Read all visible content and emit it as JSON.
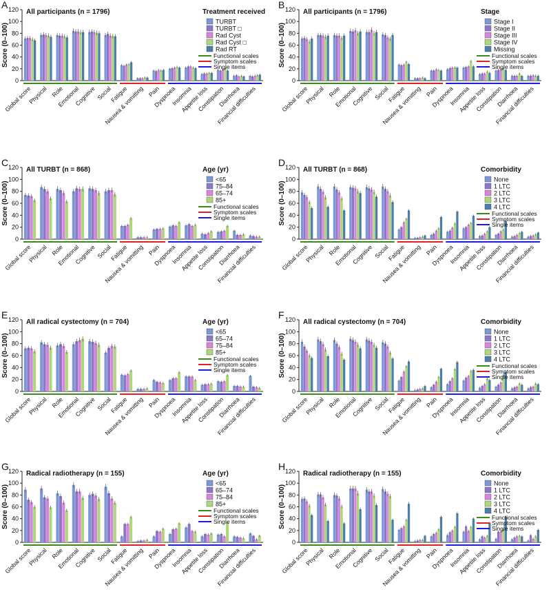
{
  "figure": {
    "y_label": "Score (0–100)",
    "y_ticks": [
      0,
      20,
      40,
      60,
      80,
      100,
      120
    ],
    "categories": [
      "Global score",
      "Physical",
      "Role",
      "Emotional",
      "Cognitive",
      "Social",
      "Fatigue",
      "Nausea & vomitting",
      "Pain",
      "Dyspnoea",
      "Insomnia",
      "Appetite loss",
      "Constipation",
      "Diarrhoea",
      "Financial difficulties"
    ],
    "scale_groups": [
      {
        "name": "Functional scales",
        "color": "#3a8a1a",
        "from": 0,
        "to": 5
      },
      {
        "name": "Symptom scales",
        "color": "#e02020",
        "from": 6,
        "to": 8
      },
      {
        "name": "Single items",
        "color": "#1a1ae0",
        "from": 9,
        "to": 14
      }
    ],
    "palette": [
      "#7b97d6",
      "#8c78c6",
      "#d687dc",
      "#aed77b",
      "#4a7fa8"
    ]
  },
  "chart_data": [
    {
      "type": "bar",
      "panel": "A",
      "title": "All participants (n = 1796)",
      "legend_title": "Treatment received",
      "ylim": [
        0,
        120
      ],
      "series": [
        {
          "name": "TURBT",
          "values": [
            71,
            77,
            77,
            84,
            82,
            77,
            26,
            4,
            17,
            20,
            22,
            11,
            18,
            8,
            8
          ]
        },
        {
          "name": "TURBT □",
          "values": [
            72,
            78,
            76,
            83,
            83,
            79,
            25,
            4,
            16,
            21,
            24,
            12,
            17,
            9,
            7
          ]
        },
        {
          "name": "Rad Cyst",
          "values": [
            72,
            77,
            76,
            83,
            82,
            76,
            27,
            4,
            18,
            22,
            24,
            12,
            19,
            7,
            8
          ]
        },
        {
          "name": "Rad Cyst □",
          "values": [
            70,
            76,
            75,
            82,
            81,
            75,
            28,
            5,
            17,
            23,
            22,
            13,
            20,
            8,
            9
          ]
        },
        {
          "name": "Rad RT",
          "values": [
            68,
            74,
            73,
            82,
            80,
            75,
            31,
            5,
            18,
            22,
            21,
            13,
            17,
            7,
            10
          ]
        }
      ]
    },
    {
      "type": "bar",
      "panel": "B",
      "title": "All participants (n = 1796)",
      "legend_title": "Stage",
      "ylim": [
        0,
        120
      ],
      "series": [
        {
          "name": "Stage I",
          "values": [
            71,
            77,
            77,
            84,
            82,
            78,
            27,
            4,
            17,
            19,
            22,
            11,
            17,
            8,
            8
          ]
        },
        {
          "name": "Stage II",
          "values": [
            72,
            77,
            76,
            83,
            82,
            77,
            26,
            4,
            17,
            21,
            23,
            12,
            18,
            8,
            8
          ]
        },
        {
          "name": "Stage III",
          "values": [
            70,
            76,
            76,
            85,
            86,
            73,
            27,
            4,
            19,
            22,
            24,
            12,
            19,
            8,
            9
          ]
        },
        {
          "name": "Stage IV",
          "values": [
            66,
            74,
            72,
            80,
            80,
            71,
            32,
            5,
            18,
            22,
            33,
            15,
            20,
            12,
            8
          ]
        },
        {
          "name": "Missing",
          "values": [
            71,
            76,
            76,
            83,
            82,
            77,
            28,
            4,
            17,
            22,
            24,
            13,
            18,
            8,
            8
          ]
        }
      ]
    },
    {
      "type": "bar",
      "panel": "C",
      "title": "All TURBT (n = 868)",
      "legend_title": "Age (yr)",
      "ylim": [
        0,
        120
      ],
      "series": [
        {
          "name": "<65",
          "values": [
            74,
            87,
            84,
            80,
            85,
            80,
            22,
            3,
            16,
            21,
            23,
            9,
            12,
            14,
            6
          ]
        },
        {
          "name": "75–84",
          "values": [
            73,
            84,
            82,
            85,
            84,
            82,
            22,
            3,
            17,
            23,
            25,
            8,
            13,
            7,
            5
          ]
        },
        {
          "name": "65–74",
          "values": [
            72,
            80,
            77,
            84,
            82,
            82,
            24,
            3,
            17,
            22,
            22,
            10,
            14,
            7,
            4
          ]
        },
        {
          "name": "85+",
          "values": [
            65,
            68,
            63,
            84,
            77,
            75,
            35,
            3,
            18,
            28,
            24,
            13,
            22,
            8,
            4
          ]
        }
      ]
    },
    {
      "type": "bar",
      "panel": "D",
      "title": "All TURBT (n = 868)",
      "legend_title": "Comorbidity",
      "ylim": [
        0,
        120
      ],
      "series": [
        {
          "name": "None",
          "values": [
            78,
            88,
            88,
            87,
            87,
            88,
            16,
            2,
            7,
            12,
            18,
            5,
            7,
            4,
            4
          ]
        },
        {
          "name": "1 LTC",
          "values": [
            74,
            84,
            83,
            86,
            85,
            84,
            20,
            2,
            9,
            14,
            20,
            6,
            9,
            5,
            5
          ]
        },
        {
          "name": "2 LTC",
          "values": [
            70,
            79,
            78,
            85,
            83,
            80,
            28,
            3,
            14,
            19,
            24,
            9,
            13,
            7,
            6
          ]
        },
        {
          "name": "3 LTC",
          "values": [
            62,
            70,
            68,
            80,
            79,
            73,
            34,
            4,
            18,
            26,
            27,
            13,
            16,
            10,
            8
          ]
        },
        {
          "name": "4 LTC",
          "values": [
            52,
            54,
            48,
            77,
            71,
            62,
            48,
            6,
            37,
            46,
            39,
            20,
            30,
            12,
            11
          ]
        }
      ]
    },
    {
      "type": "bar",
      "panel": "E",
      "title": "All radical cystectomy (n = 704)",
      "legend_title": "Age (yr)",
      "ylim": [
        0,
        120
      ],
      "series": [
        {
          "name": "<65",
          "values": [
            72,
            82,
            77,
            79,
            84,
            65,
            28,
            4,
            19,
            19,
            25,
            11,
            17,
            9,
            26
          ]
        },
        {
          "name": "65–74",
          "values": [
            73,
            79,
            79,
            84,
            83,
            73,
            27,
            4,
            16,
            22,
            25,
            12,
            16,
            9,
            8
          ]
        },
        {
          "name": "75–84",
          "values": [
            72,
            78,
            76,
            86,
            81,
            76,
            29,
            4,
            15,
            22,
            25,
            12,
            17,
            8,
            7
          ]
        },
        {
          "name": "85+",
          "values": [
            67,
            73,
            66,
            88,
            78,
            75,
            35,
            5,
            14,
            32,
            19,
            13,
            27,
            8,
            6
          ]
        }
      ]
    },
    {
      "type": "bar",
      "panel": "F",
      "title": "All radical cystectomy (n = 704)",
      "legend_title": "Comorbidity",
      "ylim": [
        0,
        120
      ],
      "series": [
        {
          "name": "None",
          "values": [
            83,
            87,
            86,
            88,
            87,
            82,
            18,
            2,
            7,
            12,
            18,
            6,
            8,
            5,
            5
          ]
        },
        {
          "name": "1 LTC",
          "values": [
            75,
            84,
            80,
            86,
            85,
            80,
            24,
            3,
            11,
            17,
            23,
            9,
            11,
            7,
            7
          ]
        },
        {
          "name": "2 LTC",
          "values": [
            68,
            79,
            74,
            83,
            83,
            75,
            33,
            4,
            16,
            22,
            26,
            12,
            15,
            8,
            8
          ]
        },
        {
          "name": "3 LTC",
          "values": [
            60,
            70,
            63,
            78,
            78,
            65,
            42,
            5,
            24,
            37,
            34,
            21,
            27,
            13,
            13
          ]
        },
        {
          "name": "4 LTC",
          "values": [
            56,
            59,
            53,
            72,
            73,
            55,
            50,
            9,
            38,
            49,
            36,
            19,
            32,
            11,
            12
          ]
        }
      ]
    },
    {
      "type": "bar",
      "panel": "G",
      "title": "Radical radiotherapy (n = 155)",
      "legend_title": "Age (yr)",
      "ylim": [
        0,
        120
      ],
      "series": [
        {
          "name": "<65",
          "values": [
            89,
            91,
            83,
            97,
            80,
            94,
            10,
            2,
            10,
            14,
            25,
            10,
            13,
            10,
            15
          ]
        },
        {
          "name": "65–74",
          "values": [
            72,
            76,
            78,
            86,
            82,
            83,
            31,
            3,
            19,
            22,
            31,
            14,
            14,
            9,
            11
          ]
        },
        {
          "name": "75–84",
          "values": [
            68,
            74,
            67,
            86,
            79,
            74,
            31,
            3,
            18,
            23,
            19,
            13,
            10,
            8,
            5
          ]
        },
        {
          "name": "85+",
          "values": [
            60,
            59,
            54,
            75,
            73,
            67,
            43,
            4,
            23,
            32,
            18,
            15,
            33,
            7,
            11
          ]
        }
      ]
    },
    {
      "type": "bar",
      "panel": "H",
      "title": "Radical radiotherapy (n = 155)",
      "legend_title": "Comorbidity",
      "ylim": [
        0,
        120
      ],
      "series": [
        {
          "name": "None",
          "values": [
            73,
            81,
            80,
            91,
            89,
            90,
            21,
            2,
            10,
            12,
            18,
            5,
            6,
            5,
            3
          ]
        },
        {
          "name": "1 LTC",
          "values": [
            74,
            81,
            79,
            91,
            86,
            86,
            24,
            3,
            14,
            17,
            27,
            10,
            18,
            8,
            12
          ]
        },
        {
          "name": "2 LTC",
          "values": [
            69,
            76,
            74,
            91,
            86,
            82,
            27,
            4,
            16,
            20,
            19,
            8,
            18,
            10,
            6
          ]
        },
        {
          "name": "3 LTC",
          "values": [
            62,
            64,
            61,
            83,
            79,
            78,
            38,
            4,
            22,
            26,
            26,
            11,
            21,
            11,
            10
          ]
        },
        {
          "name": "4 LTC",
          "values": [
            46,
            36,
            32,
            56,
            63,
            38,
            65,
            11,
            43,
            49,
            40,
            33,
            43,
            10,
            21
          ]
        }
      ]
    }
  ]
}
